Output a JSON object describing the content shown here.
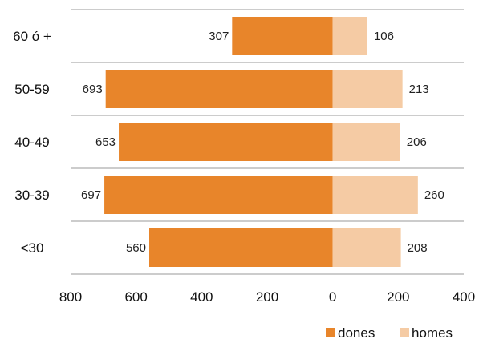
{
  "chart_data": {
    "type": "bar",
    "orientation": "horizontal-diverging",
    "categories": [
      "60 ó +",
      "50-59",
      "40-49",
      "30-39",
      "<30"
    ],
    "series": [
      {
        "name": "dones",
        "values": [
          307,
          693,
          653,
          697,
          560
        ],
        "color": "#E8852A",
        "side": "left"
      },
      {
        "name": "homes",
        "values": [
          106,
          213,
          206,
          260,
          208
        ],
        "color": "#F5CBA4",
        "side": "right"
      }
    ],
    "x_ticks": [
      "800",
      "600",
      "400",
      "200",
      "0",
      "200",
      "400"
    ],
    "x_range": [
      -800,
      400
    ],
    "grid": "horizontal separators between categories",
    "legend_position": "bottom-right",
    "title": "",
    "xlabel": "",
    "ylabel": ""
  }
}
